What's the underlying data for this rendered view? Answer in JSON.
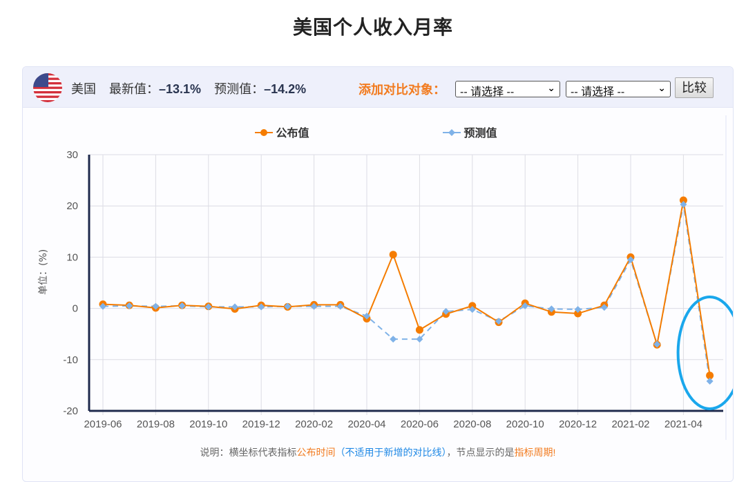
{
  "page": {
    "title": "美国个人收入月率"
  },
  "header": {
    "country": "美国",
    "latest_label": "最新值：",
    "latest_value": "–13.1%",
    "forecast_label": "预测值：",
    "forecast_value": "–14.2%",
    "add_compare_label": "添加对比对象：",
    "select1": {
      "value": "-- 请选择 --"
    },
    "select2": {
      "value": "-- 请选择 --"
    },
    "compare_button": "比较",
    "flag_icon": "us-flag-icon"
  },
  "legend": {
    "published": "公布值",
    "forecast": "预测值"
  },
  "note": {
    "prefix": "说明：横坐标代表指标",
    "highlight1": "公布时间",
    "paren": "（不适用于新增的对比线）",
    "middle": "，节点显示的是",
    "highlight2": "指标周期",
    "suffix": "!"
  },
  "colors": {
    "published": "#f57c00",
    "forecast": "#7fb2e8",
    "axis": "#1f2a4d",
    "highlight_circle": "#1aa7ec",
    "accent": "#f27b1f"
  },
  "chart_data": {
    "type": "line",
    "title": "美国个人收入月率",
    "xlabel": "",
    "ylabel": "单位：(%)",
    "ylim": [
      -20,
      30
    ],
    "yticks": [
      30,
      20,
      10,
      0,
      -10,
      -20
    ],
    "xtick_labels": [
      "2019-06",
      "2019-08",
      "2019-10",
      "2019-12",
      "2020-02",
      "2020-04",
      "2020-06",
      "2020-08",
      "2020-10",
      "2020-12",
      "2021-02",
      "2021-04"
    ],
    "x": [
      "2019-06",
      "2019-07",
      "2019-08",
      "2019-09",
      "2019-10",
      "2019-11",
      "2019-12",
      "2020-01",
      "2020-02",
      "2020-03",
      "2020-04",
      "2020-05",
      "2020-06",
      "2020-07",
      "2020-08",
      "2020-09",
      "2020-10",
      "2020-11",
      "2020-12",
      "2021-01",
      "2021-02",
      "2021-03",
      "2021-04",
      "2021-05"
    ],
    "series": [
      {
        "name": "公布值",
        "style": "solid-circle",
        "values": [
          0.8,
          0.6,
          0.1,
          0.6,
          0.4,
          -0.1,
          0.6,
          0.3,
          0.7,
          0.7,
          -2.0,
          10.5,
          -4.2,
          -1.1,
          0.5,
          -2.7,
          1.0,
          -0.7,
          -1.0,
          0.6,
          10.0,
          -7.1,
          21.1,
          -13.1
        ]
      },
      {
        "name": "预测值",
        "style": "dashed-diamond",
        "values": [
          0.4,
          0.5,
          0.4,
          0.5,
          0.3,
          0.3,
          0.3,
          0.4,
          0.4,
          0.4,
          -1.5,
          -6.0,
          -6.0,
          -0.6,
          -0.2,
          -2.5,
          0.5,
          -0.1,
          -0.2,
          0.2,
          9.5,
          -7.0,
          20.3,
          -14.2
        ]
      }
    ],
    "grid": true,
    "legend_position": "top",
    "annotation": "blue ellipse highlighting 2021-05 point"
  }
}
